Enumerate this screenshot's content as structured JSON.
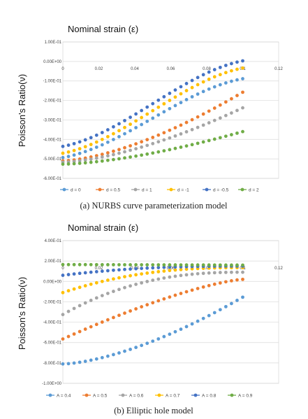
{
  "figure": {
    "captions": [
      "(a)  NURBS curve parameterization model",
      "(b)  Elliptic hole model"
    ]
  },
  "chart_data": [
    {
      "type": "scatter",
      "title": "Nominal strain (ε)",
      "ylabel": "Poisson's Ratio(ν)",
      "xlim": [
        0,
        0.12
      ],
      "ylim": [
        -0.6,
        0.1
      ],
      "x_ticks": [
        "0",
        "0.02",
        "0.04",
        "0.06",
        "0.08",
        "0.1",
        "0.12"
      ],
      "y_ticks": [
        "1.00E-01",
        "0.00E+00",
        "-1.00E-01",
        "-2.00E-01",
        "-3.00E-01",
        "-4.00E-01",
        "-5.00E-01",
        "-6.00E-01"
      ],
      "grid": true,
      "x_axis_position": "top",
      "legend_position": "bottom",
      "series": [
        {
          "name": "d = 0",
          "color": "#5b9bd5",
          "start": -0.497,
          "end": -0.085,
          "shape": "s"
        },
        {
          "name": "d = 0.5",
          "color": "#ed7d31",
          "start": -0.51,
          "end": -0.158,
          "shape": "convex"
        },
        {
          "name": "d = 1",
          "color": "#a5a5a5",
          "start": -0.517,
          "end": -0.238,
          "shape": "convex"
        },
        {
          "name": "d = -1",
          "color": "#ffc000",
          "start": -0.475,
          "end": -0.03,
          "shape": "s"
        },
        {
          "name": "d = -0.5",
          "color": "#4472c4",
          "start": -0.44,
          "end": 0.007,
          "shape": "s"
        },
        {
          "name": "d = 2",
          "color": "#70ad47",
          "start": -0.527,
          "end": -0.36,
          "shape": "convex"
        }
      ]
    },
    {
      "type": "scatter",
      "title": "Nominal strain (ε)",
      "ylabel": "Poisson's Ratio(ν)",
      "xlim": [
        0,
        0.12
      ],
      "ylim": [
        -1.0,
        0.4
      ],
      "x_ticks": [
        "0",
        "0.02",
        "0.04",
        "0.06",
        "0.08",
        "0.1",
        "0.12"
      ],
      "y_ticks": [
        "4.00E-01",
        "2.00E-01",
        "0.00E+00",
        "-2.00E-01",
        "-4.00E-01",
        "-6.00E-01",
        "-8.00E-01",
        "-1.00E+00"
      ],
      "grid": true,
      "x_axis_position": "top",
      "legend_position": "bottom",
      "series": [
        {
          "name": "A = 0.4",
          "color": "#5b9bd5",
          "start": -0.81,
          "end": -0.155,
          "shape": "convex"
        },
        {
          "name": "A = 0.5",
          "color": "#ed7d31",
          "start": -0.565,
          "end": 0.02,
          "shape": "concave"
        },
        {
          "name": "A = 0.6",
          "color": "#a5a5a5",
          "start": -0.325,
          "end": 0.09,
          "shape": "sat"
        },
        {
          "name": "A = 0.7",
          "color": "#ffc000",
          "start": -0.11,
          "end": 0.135,
          "shape": "sat"
        },
        {
          "name": "A = 0.8",
          "color": "#4472c4",
          "start": 0.06,
          "end": 0.15,
          "shape": "sat"
        },
        {
          "name": "A = 0.9",
          "color": "#70ad47",
          "start": 0.165,
          "end": 0.16,
          "shape": "flat"
        }
      ]
    }
  ]
}
